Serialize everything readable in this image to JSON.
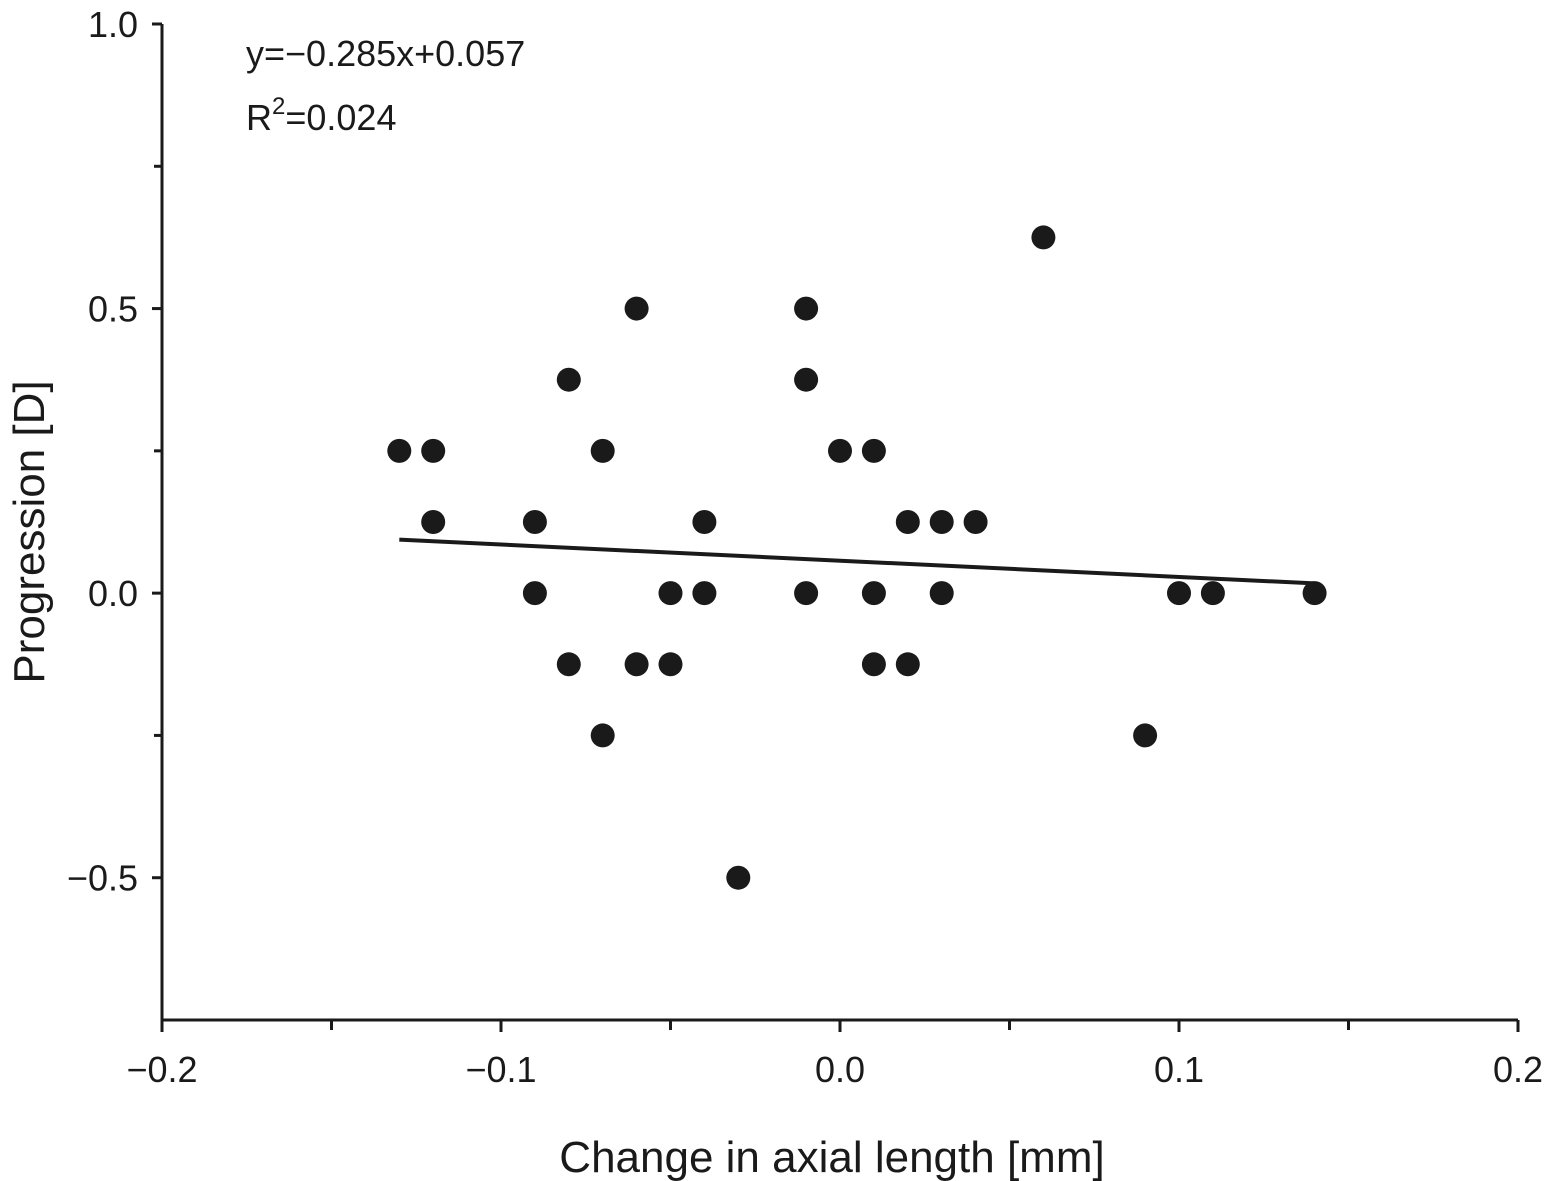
{
  "chart_data": {
    "type": "scatter",
    "xlabel": "Change in axial length [mm]",
    "ylabel": "Progression [D]",
    "xlim": [
      -0.2,
      0.2
    ],
    "ylim": [
      -0.75,
      1.0
    ],
    "x_ticks": [
      -0.2,
      -0.1,
      0.0,
      0.1,
      0.2
    ],
    "x_tick_labels": [
      "−0.2",
      "−0.1",
      "0.0",
      "0.1",
      "0.2"
    ],
    "x_minor_ticks": [
      -0.15,
      -0.05,
      0.05,
      0.15
    ],
    "y_ticks": [
      -0.5,
      0.0,
      0.5,
      1.0
    ],
    "y_tick_labels": [
      "−0.5",
      "0.0",
      "0.5",
      "1.0"
    ],
    "y_minor_ticks": [
      -0.25,
      0.25,
      0.75
    ],
    "grid": false,
    "annotations": {
      "equation": "y=−0.285x+0.057",
      "r2_base": "R",
      "r2_exp": "2",
      "r2_value": "=0.024"
    },
    "trendline": {
      "slope": -0.285,
      "intercept": 0.057,
      "x_range": [
        -0.13,
        0.14
      ]
    },
    "points": [
      {
        "x": -0.13,
        "y": 0.25
      },
      {
        "x": -0.12,
        "y": 0.25
      },
      {
        "x": -0.12,
        "y": 0.125
      },
      {
        "x": -0.09,
        "y": 0.125
      },
      {
        "x": -0.09,
        "y": 0.0
      },
      {
        "x": -0.08,
        "y": 0.375
      },
      {
        "x": -0.08,
        "y": -0.125
      },
      {
        "x": -0.07,
        "y": 0.25
      },
      {
        "x": -0.07,
        "y": -0.25
      },
      {
        "x": -0.06,
        "y": 0.5
      },
      {
        "x": -0.06,
        "y": -0.125
      },
      {
        "x": -0.05,
        "y": 0.0
      },
      {
        "x": -0.05,
        "y": -0.125
      },
      {
        "x": -0.04,
        "y": 0.125
      },
      {
        "x": -0.04,
        "y": 0.0
      },
      {
        "x": -0.03,
        "y": -0.5
      },
      {
        "x": -0.01,
        "y": 0.5
      },
      {
        "x": -0.01,
        "y": 0.375
      },
      {
        "x": -0.01,
        "y": 0.0
      },
      {
        "x": 0.0,
        "y": 0.25
      },
      {
        "x": 0.01,
        "y": 0.25
      },
      {
        "x": 0.01,
        "y": 0.0
      },
      {
        "x": 0.01,
        "y": -0.125
      },
      {
        "x": 0.02,
        "y": 0.125
      },
      {
        "x": 0.02,
        "y": -0.125
      },
      {
        "x": 0.03,
        "y": 0.125
      },
      {
        "x": 0.03,
        "y": 0.0
      },
      {
        "x": 0.04,
        "y": 0.125
      },
      {
        "x": 0.06,
        "y": 0.625
      },
      {
        "x": 0.09,
        "y": -0.25
      },
      {
        "x": 0.1,
        "y": 0.0
      },
      {
        "x": 0.11,
        "y": 0.0
      },
      {
        "x": 0.14,
        "y": 0.0
      }
    ]
  }
}
